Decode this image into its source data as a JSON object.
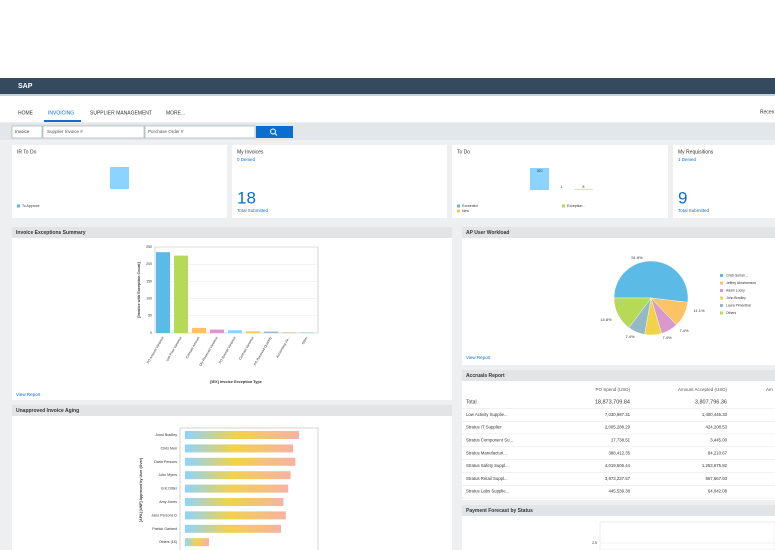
{
  "header": {
    "logo": "SAP",
    "recent": "Recen"
  },
  "nav": {
    "items": [
      "HOME",
      "INVOICING",
      "SUPPLIER MANAGEMENT",
      "MORE..."
    ]
  },
  "search": {
    "type": "Invoice",
    "supplier_invoice": "Supplier Invoice #",
    "purchase_order": "Purchase Order #"
  },
  "tiles": [
    {
      "title": "IR To Do",
      "legend": [
        "To Approve"
      ]
    },
    {
      "title": "My Invoices",
      "subtitle": "0 Denied",
      "value": 18,
      "caption": "Total Submitted"
    },
    {
      "title": "To Do",
      "bars": [
        320,
        1,
        8
      ],
      "legend": [
        "Exceeded",
        "Exception...",
        "New"
      ]
    },
    {
      "title": "My Requisitions",
      "subtitle": "1 Denied",
      "value": 9,
      "caption": "Total Submitted"
    }
  ],
  "exceptions": {
    "title": "Invoice Exceptions Summary",
    "y_label": "[Invoice with Exception Count]",
    "x_label": "[IEX] Invoice Exception Type",
    "categories": [
      "PO Amount Variance",
      "Unit Price Variance",
      "Contract Amount",
      "Qty Received Variance",
      "PO Receipt Variance",
      "Contract Variance",
      "PO Received Quantity",
      "Accounting Va...",
      "Other"
    ],
    "values": [
      235,
      225,
      15,
      10,
      8,
      5,
      4,
      2,
      1
    ],
    "colors": [
      "#5cbae6",
      "#b6d957",
      "#fac364",
      "#d998cb",
      "#8cd3ff",
      "#f2d249",
      "#93b9c6",
      "#ccc5a8",
      "#52bacc"
    ],
    "ylim": [
      0,
      250
    ],
    "yticks": [
      0,
      50,
      100,
      150,
      200,
      250
    ],
    "link": "View Report"
  },
  "aging": {
    "title": "Unapproved Invoice Aging",
    "y_label": "[APA] [UNP] Approved by User (Over)",
    "categories": [
      "Joost Bradley",
      "Chris Muir",
      "Darla Persons",
      "John Myers",
      "Eric Ditter",
      "Amy Jones",
      "Jane Persons D",
      "Patrick Garland",
      "Others (16)"
    ],
    "values": [
      95,
      90,
      92,
      88,
      86,
      82,
      84,
      80,
      20
    ],
    "xlim": [
      0,
      100
    ]
  },
  "workload": {
    "title": "AP User Workload",
    "values": [
      51.8,
      11.1,
      7.4,
      7.4,
      7.4,
      14.8
    ],
    "value_labels": [
      "51.8%",
      "11.1%",
      "7.4%",
      "7.4%",
      "7.4%",
      "14.8%"
    ],
    "names": [
      "Cristi Gerlan...",
      "Jeffrey Abrahamson",
      "Adam Lucey",
      "John Bradley",
      "Laura Pimenthal",
      "Others"
    ],
    "colors": [
      "#5cbae6",
      "#fac364",
      "#d998cb",
      "#f2d249",
      "#93b9c6",
      "#b6d957"
    ],
    "link": "View Report"
  },
  "accruals": {
    "title": "Accruals Report",
    "columns": [
      "PO Spend (USD)",
      "Amount Accepted (USD)",
      "Am"
    ],
    "rows": [
      [
        "Total",
        "18,873,709.84",
        "3,807,796.36"
      ],
      [
        "Low Activity Supplie...",
        "7,030,987.31",
        "1,400,446.33"
      ],
      [
        "Stratus IT Supplier",
        "2,005,288.29",
        "424,208.53"
      ],
      [
        "Stratus Component Su...",
        "17,738.51",
        "3,445.00"
      ],
      [
        "Stratus Manufacturi...",
        "388,412.35",
        "84,210.67"
      ],
      [
        "Stratus Safety Suppl...",
        "4,019,506.44",
        "1,253,675.82"
      ],
      [
        "Stratus Retail Suppl...",
        "3,973,237.57",
        "567,667.93"
      ],
      [
        "Stratus Labs Supplie...",
        "445,539.38",
        "64,042.08"
      ]
    ]
  },
  "forecast": {
    "title": "Payment Forecast by Status",
    "yticks": [
      2.5
    ]
  }
}
